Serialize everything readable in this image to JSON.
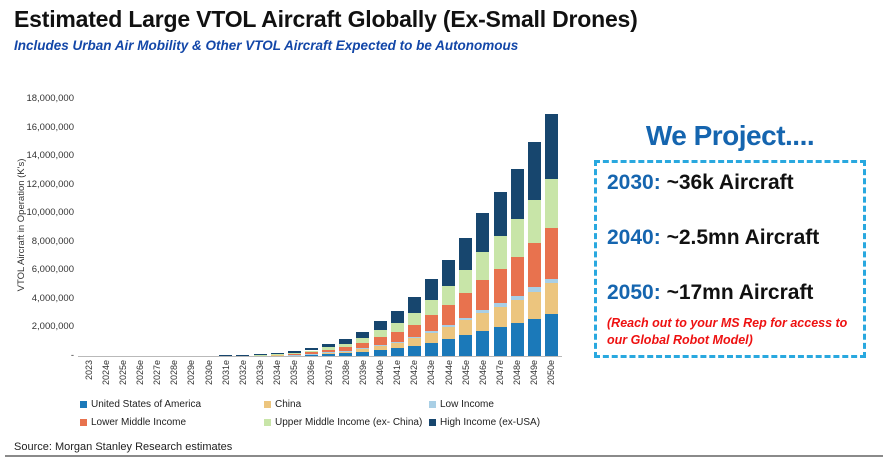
{
  "page": {
    "title": "Estimated Large VTOL Aircraft Globally (Ex-Small Drones)",
    "subtitle": "Includes Urban Air Mobility & Other VTOL Aircraft Expected to be Autonomous",
    "source": "Source: Morgan Stanley Research estimates"
  },
  "projection": {
    "title": "We Project....",
    "items": [
      {
        "year": "2030:",
        "value": "~36k Aircraft"
      },
      {
        "year": "2040:",
        "value": "~2.5mn Aircraft"
      },
      {
        "year": "2050:",
        "value": "~17mn Aircraft"
      }
    ],
    "note": "(Reach out to your MS Rep for access to our Global Robot Model)",
    "accent_blue": "#1565AF",
    "border_blue": "#29A8DF",
    "note_red": "#EE1111"
  },
  "chart_data": {
    "type": "bar",
    "stacked": true,
    "title": "",
    "xlabel": "",
    "ylabel": "VTOL Aircraft in Operation (K's)",
    "ylim": [
      0,
      18000000
    ],
    "ytick_step": 2000000,
    "grid": false,
    "legend_position": "bottom",
    "yticks": [
      "-",
      "2,000,000",
      "4,000,000",
      "6,000,000",
      "8,000,000",
      "10,000,000",
      "12,000,000",
      "14,000,000",
      "16,000,000",
      "18,000,000"
    ],
    "categories": [
      "2023",
      "2024e",
      "2025e",
      "2026e",
      "2027e",
      "2028e",
      "2029e",
      "2030e",
      "2031e",
      "2032e",
      "2033e",
      "2034e",
      "2035e",
      "2036e",
      "2037e",
      "2038e",
      "2039e",
      "2040e",
      "2041e",
      "2042e",
      "2043e",
      "2044e",
      "2045e",
      "2046e",
      "2047e",
      "2048e",
      "2049e",
      "2050e"
    ],
    "series": [
      {
        "name": "United States of America",
        "color": "#1B79B9",
        "values": [
          350,
          700,
          1150,
          1750,
          2450,
          3300,
          4550,
          6300,
          9600,
          14900,
          22800,
          35900,
          57800,
          92800,
          143500,
          204800,
          297500,
          428800,
          551300,
          726300,
          945000,
          1172500,
          1452500,
          1750000,
          2012500,
          2292500,
          2625000,
          2966000
        ]
      },
      {
        "name": "China",
        "color": "#ECC57E",
        "values": [
          250,
          500,
          810,
          1250,
          1750,
          2380,
          3250,
          4500,
          6900,
          10600,
          16300,
          25600,
          41300,
          66300,
          102500,
          146300,
          212500,
          306300,
          393800,
          518800,
          675000,
          837500,
          1037500,
          1250000,
          1437500,
          1637500,
          1875000,
          2119000
        ]
      },
      {
        "name": "Low Income",
        "color": "#A9CFE5",
        "values": [
          40,
          80,
          130,
          200,
          280,
          380,
          520,
          720,
          1100,
          1700,
          2600,
          4100,
          6600,
          10600,
          16400,
          23400,
          34000,
          49000,
          63000,
          83000,
          108000,
          134000,
          166000,
          200000,
          230000,
          262000,
          300000,
          339000
        ]
      },
      {
        "name": "Lower Middle Income",
        "color": "#E8724E",
        "values": [
          420,
          840,
          1370,
          2100,
          2940,
          3990,
          5460,
          7560,
          11550,
          17850,
          27300,
          43050,
          69300,
          111300,
          172200,
          245700,
          357000,
          514500,
          661500,
          871500,
          1134000,
          1407000,
          1743000,
          2100000,
          2415000,
          2751000,
          3150000,
          3560000
        ]
      },
      {
        "name": "Upper Middle Income (ex- China)",
        "color": "#C8E5A8",
        "values": [
          400,
          800,
          1300,
          2000,
          2800,
          3800,
          5200,
          7200,
          11000,
          17000,
          26000,
          41000,
          66000,
          106000,
          164000,
          234000,
          340000,
          490000,
          630000,
          830000,
          1080000,
          1340000,
          1660000,
          2000000,
          2300000,
          2620000,
          3000000,
          3390000
        ]
      },
      {
        "name": "High Income (ex-USA)",
        "color": "#17466E",
        "values": [
          540,
          1080,
          1760,
          2700,
          3780,
          5130,
          7020,
          9720,
          14850,
          22950,
          35100,
          55350,
          89100,
          143100,
          221400,
          315900,
          459000,
          661500,
          850500,
          1120500,
          1458000,
          1809000,
          2241000,
          2700000,
          3105000,
          3537000,
          4050000,
          4577000
        ]
      }
    ]
  }
}
